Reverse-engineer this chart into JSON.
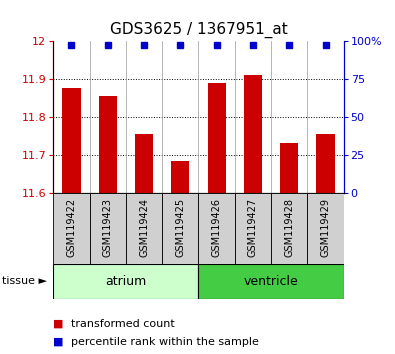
{
  "title": "GDS3625 / 1367951_at",
  "samples": [
    "GSM119422",
    "GSM119423",
    "GSM119424",
    "GSM119425",
    "GSM119426",
    "GSM119427",
    "GSM119428",
    "GSM119429"
  ],
  "bar_values": [
    11.875,
    11.855,
    11.755,
    11.685,
    11.89,
    11.91,
    11.73,
    11.755
  ],
  "percentile_values": [
    100,
    100,
    100,
    100,
    100,
    100,
    100,
    100
  ],
  "ylim_left": [
    11.6,
    12.0
  ],
  "ylim_right": [
    0,
    100
  ],
  "yticks_left": [
    11.6,
    11.7,
    11.8,
    11.9,
    12.0
  ],
  "ytick_labels_left": [
    "11.6",
    "11.7",
    "11.8",
    "11.9",
    "12"
  ],
  "yticks_right": [
    0,
    25,
    50,
    75,
    100
  ],
  "ytick_labels_right": [
    "0",
    "25",
    "50",
    "75",
    "100%"
  ],
  "bar_color": "#cc0000",
  "blue_color": "#0000cc",
  "sample_box_color": "#d0d0d0",
  "tissue_groups": [
    {
      "label": "atrium",
      "start": 0,
      "end": 4,
      "color": "#ccffcc"
    },
    {
      "label": "ventricle",
      "start": 4,
      "end": 8,
      "color": "#44cc44"
    }
  ],
  "tissue_label": "tissue ►",
  "legend_red_label": "transformed count",
  "legend_blue_label": "percentile rank within the sample",
  "bar_width": 0.5,
  "title_fontsize": 11,
  "tick_fontsize": 8,
  "sample_fontsize": 7,
  "tissue_fontsize": 9,
  "legend_fontsize": 8
}
